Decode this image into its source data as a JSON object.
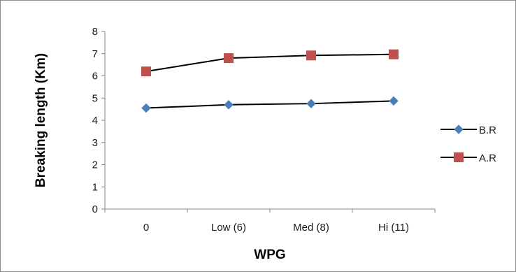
{
  "chart_data": {
    "type": "line",
    "title": "",
    "xlabel": "WPG",
    "ylabel": "Breaking length (Km)",
    "categories": [
      "0",
      "Low (6)",
      "Med (8)",
      "Hi (11)"
    ],
    "ylim": [
      0,
      8
    ],
    "yticks": [
      "0",
      "1",
      "2",
      "3",
      "4",
      "5",
      "6",
      "7",
      "8"
    ],
    "grid": false,
    "legend_position": "right",
    "series": [
      {
        "name": "B.R",
        "values": [
          4.55,
          4.7,
          4.75,
          4.87
        ],
        "color": "#4a7ebb",
        "marker": "diamond",
        "line_color": "#000000"
      },
      {
        "name": "A.R",
        "values": [
          6.2,
          6.8,
          6.92,
          6.97
        ],
        "color": "#c0504d",
        "marker": "square",
        "line_color": "#000000"
      }
    ]
  }
}
